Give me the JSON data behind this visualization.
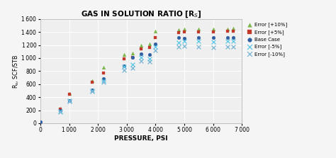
{
  "title": "GAS IN SOLUTION RATIO [R$_S$]",
  "xlabel": "PRESSURE, PSI",
  "ylabel": "R$_s$, SCF/STB",
  "xlim": [
    0,
    7000
  ],
  "ylim": [
    0,
    1600
  ],
  "xticks": [
    0,
    1000,
    2000,
    3000,
    4000,
    5000,
    6000,
    7000
  ],
  "yticks": [
    0,
    200,
    400,
    600,
    800,
    1000,
    1200,
    1400,
    1600
  ],
  "pressure": [
    0,
    700,
    1000,
    1800,
    2200,
    2900,
    3200,
    3500,
    3800,
    4000,
    4800,
    5000,
    5500,
    6000,
    6500,
    6700
  ],
  "base_case": [
    20,
    195,
    350,
    510,
    680,
    880,
    1010,
    1060,
    1050,
    1215,
    1310,
    1300,
    1310,
    1310,
    1320,
    1315
  ],
  "err_p10": [
    null,
    225,
    460,
    650,
    860,
    1050,
    1080,
    1200,
    1220,
    1410,
    1435,
    1445,
    1440,
    1445,
    1450,
    1455
  ],
  "err_p5": [
    null,
    215,
    450,
    625,
    775,
    990,
    1010,
    1140,
    1165,
    1320,
    1395,
    1405,
    1400,
    1405,
    1415,
    1415
  ],
  "err_m5": [
    null,
    185,
    345,
    500,
    655,
    865,
    900,
    1005,
    990,
    1175,
    1240,
    1255,
    1255,
    1250,
    1255,
    1255
  ],
  "err_m10": [
    null,
    175,
    335,
    490,
    635,
    810,
    845,
    955,
    950,
    1120,
    1175,
    1180,
    1175,
    1165,
    1175,
    1170
  ],
  "color_p10": "#7ab648",
  "color_p5": "#c0392b",
  "color_base": "#2e5fa3",
  "color_m5": "#5bc8e8",
  "color_m10": "#7ab5d4",
  "bg_color": "#efefef",
  "grid_color": "#ffffff",
  "fig_bg": "#f5f5f5"
}
